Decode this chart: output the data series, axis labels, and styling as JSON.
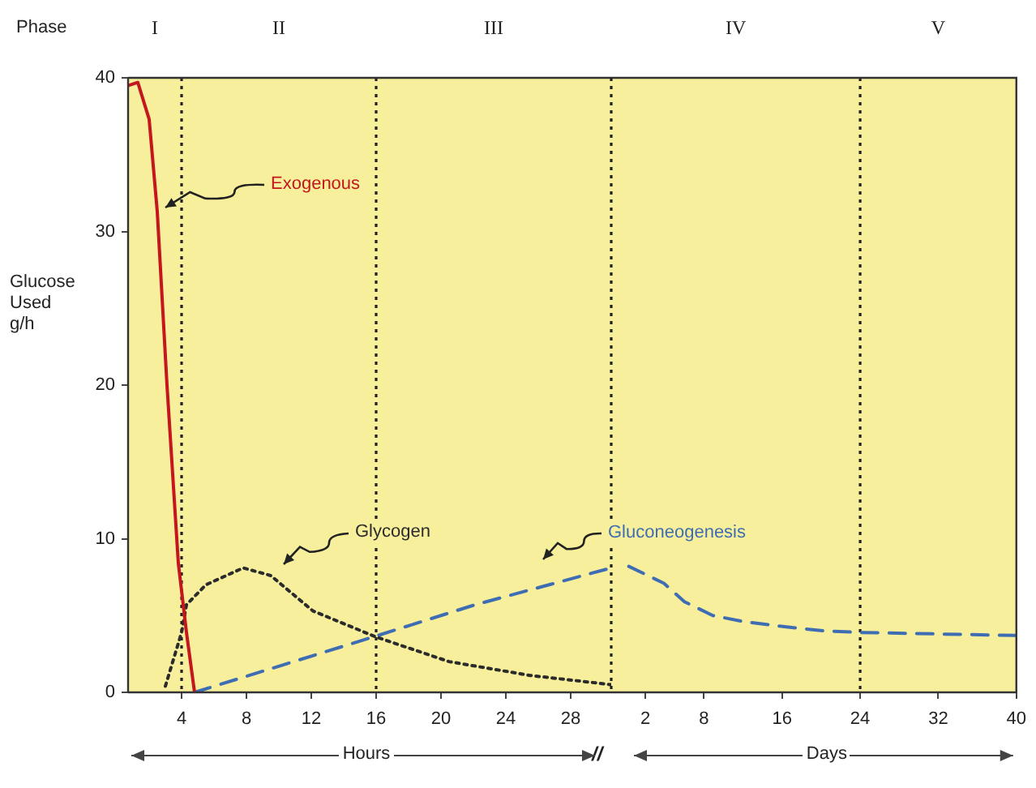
{
  "chart_data": [
    {
      "type": "line",
      "ylabel": "Glucose Used g/h",
      "xlabel": "Hours",
      "xlim": [
        0.7,
        30.5
      ],
      "xticks": [
        4,
        8,
        12,
        16,
        20,
        24,
        28
      ],
      "ylim": [
        0,
        40
      ],
      "yticks": [
        0,
        10,
        20,
        30,
        40
      ],
      "grid": false,
      "legend": false,
      "marker": "none",
      "annotations": [
        "Phase",
        "I",
        "II",
        "III"
      ],
      "series": [
        {
          "name": "Exogenous",
          "color": "#c4161c",
          "line_style": "solid",
          "x": [
            0.7,
            1.3,
            2,
            2.5,
            3.1,
            3.8,
            4.3,
            4.8
          ],
          "values": [
            39.5,
            39.7,
            37.3,
            31.3,
            20,
            8.4,
            3.9,
            0
          ]
        },
        {
          "name": "Glycogen",
          "color": "#2b2b2b",
          "line_style": "dotted",
          "x": [
            3,
            4,
            4.3,
            5.5,
            7.8,
            9.5,
            12.1,
            16,
            20.5,
            25.5,
            30.5
          ],
          "values": [
            0.4,
            3.9,
            5.7,
            7,
            8.1,
            7.6,
            5.3,
            3.6,
            2,
            1.1,
            0.5
          ]
        },
        {
          "name": "Gluconeogenesis",
          "color": "#3f6db3",
          "line_style": "dashed",
          "x": [
            4.8,
            15.8,
            22.1,
            30.5
          ],
          "values": [
            0,
            3.6,
            5.7,
            8.1
          ]
        }
      ],
      "ref_lines": [
        {
          "axis": "x",
          "value": 4,
          "line_style": "dotted",
          "color": "#222222"
        },
        {
          "axis": "x",
          "value": 16,
          "line_style": "dotted",
          "color": "#222222"
        }
      ]
    },
    {
      "type": "line",
      "xlabel": "Days",
      "xlim": [
        -1.5,
        40
      ],
      "xticks": [
        2,
        8,
        16,
        24,
        32,
        40
      ],
      "ylim": [
        0,
        40
      ],
      "tick_labels": "x",
      "grid": false,
      "legend": false,
      "marker": "none",
      "annotations": [
        "//",
        "IV",
        "V"
      ],
      "series": [
        {
          "color": "#3f6db3",
          "line_style": "dashed",
          "x": [
            0.3,
            3.9,
            6,
            8.9,
            12.1,
            15.9,
            20.3,
            24,
            40
          ],
          "values": [
            8.2,
            7.1,
            5.9,
            5,
            4.6,
            4.3,
            4,
            3.9,
            3.7
          ]
        }
      ],
      "ref_lines": [
        {
          "axis": "x",
          "value": 24,
          "line_style": "dotted",
          "color": "#222222"
        }
      ]
    }
  ]
}
